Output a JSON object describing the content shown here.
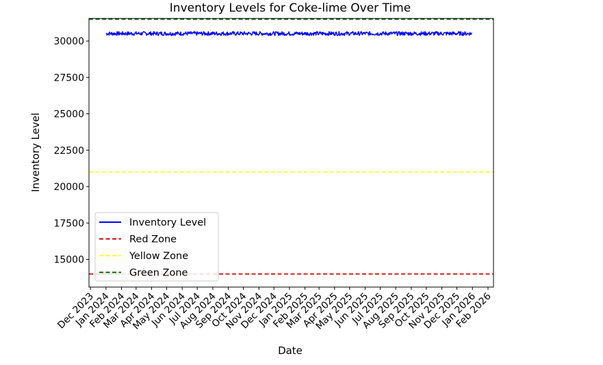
{
  "chart_data": {
    "type": "line",
    "title": "Inventory Levels for Coke-lime Over Time",
    "xlabel": "Date",
    "ylabel": "Inventory Level",
    "grid": false,
    "legend_placement": "lower-left",
    "xlim": [
      "2023-11-28",
      "2026-02-12"
    ],
    "ylim": [
      13100,
      31550
    ],
    "x_ticks": [
      "2023-12-01",
      "2024-01-01",
      "2024-02-01",
      "2024-03-01",
      "2024-04-01",
      "2024-05-01",
      "2024-06-01",
      "2024-07-01",
      "2024-08-01",
      "2024-09-01",
      "2024-10-01",
      "2024-11-01",
      "2024-12-01",
      "2025-01-01",
      "2025-02-01",
      "2025-03-01",
      "2025-04-01",
      "2025-05-01",
      "2025-06-01",
      "2025-07-01",
      "2025-08-01",
      "2025-09-01",
      "2025-10-01",
      "2025-11-01",
      "2025-12-01",
      "2026-01-01",
      "2026-02-01"
    ],
    "x_tick_labels": [
      "Dec 2023",
      "Jan 2024",
      "Feb 2024",
      "Mar 2024",
      "Apr 2024",
      "May 2024",
      "Jun 2024",
      "Jul 2024",
      "Aug 2024",
      "Sep 2024",
      "Oct 2024",
      "Nov 2024",
      "Dec 2024",
      "Jan 2025",
      "Feb 2025",
      "Mar 2025",
      "Apr 2025",
      "May 2025",
      "Jun 2025",
      "Jul 2025",
      "Aug 2025",
      "Sep 2025",
      "Oct 2025",
      "Nov 2025",
      "Dec 2025",
      "Jan 2026",
      "Feb 2026"
    ],
    "y_ticks": [
      15000,
      17500,
      20000,
      22500,
      25000,
      27500,
      30000
    ],
    "y_tick_labels": [
      "15000",
      "17500",
      "20000",
      "22500",
      "25000",
      "27500",
      "30000"
    ],
    "series": [
      {
        "name": "Inventory Level",
        "color": "#0000ff",
        "style": "solid",
        "x_range": [
          "2024-01-01",
          "2025-12-31"
        ],
        "mean": 30500,
        "min": 30380,
        "max": 30650
      }
    ],
    "reference_lines": [
      {
        "name": "Red Zone",
        "y": 14000,
        "color": "#cc0000",
        "style": "dashed"
      },
      {
        "name": "Yellow Zone",
        "y": 21000,
        "color": "#ffff00",
        "style": "dashed"
      },
      {
        "name": "Green Zone",
        "y": 31500,
        "color": "#006400",
        "style": "dashed"
      }
    ],
    "legend": [
      "Inventory Level",
      "Red Zone",
      "Yellow Zone",
      "Green Zone"
    ]
  }
}
